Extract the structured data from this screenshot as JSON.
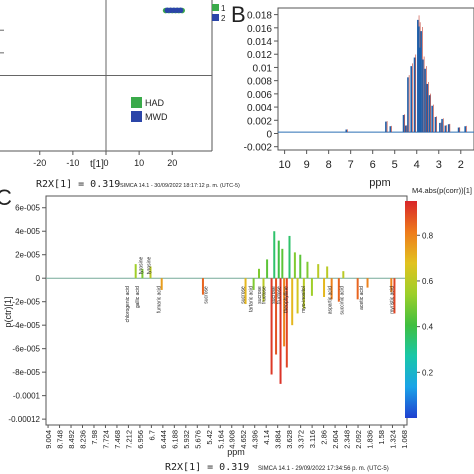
{
  "panels": {
    "b_letter": "B",
    "c_letter": "C"
  },
  "chart_data": [
    {
      "id": "A",
      "type": "scatter",
      "xlabel": "t[1]",
      "x_ticks": [
        -20,
        -10,
        0,
        10,
        20
      ],
      "xlim": [
        -32,
        32
      ],
      "ylim": [
        -1,
        1
      ],
      "series": [
        {
          "name": "HAD",
          "color": "#3aaa4a",
          "x": [
            18,
            19,
            20,
            21,
            22,
            23
          ],
          "y": [
            0.86,
            0.86,
            0.86,
            0.86,
            0.86,
            0.86
          ]
        },
        {
          "name": "MWD",
          "color": "#2b45a8",
          "x": [
            18.5,
            19.5,
            20.5,
            21.5,
            22.5
          ],
          "y": [
            0.87,
            0.87,
            0.87,
            0.87,
            0.87
          ]
        }
      ],
      "legend_top": [
        "1",
        "2"
      ],
      "legend_top_colors": [
        "#3aaa4a",
        "#2b45a8"
      ],
      "annotation": "R2X[1] = 0.319",
      "footer": "SIMCA 14.1 - 30/09/2022 18:17:12 p. m. (UTC-5)"
    },
    {
      "id": "B",
      "type": "line",
      "xlabel": "ppm",
      "x_ticks": [
        10,
        9,
        8,
        7,
        6,
        5,
        4,
        3,
        2
      ],
      "xlim": [
        10.3,
        1.4
      ],
      "ylim": [
        -0.0025,
        0.019
      ],
      "y_ticks": [
        0.018,
        0.016,
        0.014,
        0.012,
        0.01,
        0.008,
        0.006,
        0.004,
        0.002,
        0,
        -0.002
      ],
      "y_tick_labels": [
        "0.018",
        "0.016",
        "0.014",
        "0.012",
        "0.01",
        "0.008",
        "0.006",
        "0.004",
        "0.002",
        "0",
        "-0.002"
      ],
      "peaks": [
        {
          "x": 4.4,
          "y": 0.0085
        },
        {
          "x": 4.25,
          "y": 0.0102
        },
        {
          "x": 4.1,
          "y": 0.0115
        },
        {
          "x": 3.95,
          "y": 0.0172
        },
        {
          "x": 3.9,
          "y": 0.0162
        },
        {
          "x": 3.85,
          "y": 0.013
        },
        {
          "x": 3.8,
          "y": 0.0155
        },
        {
          "x": 3.72,
          "y": 0.0112
        },
        {
          "x": 3.62,
          "y": 0.0098
        },
        {
          "x": 3.52,
          "y": 0.0075
        },
        {
          "x": 3.42,
          "y": 0.0058
        },
        {
          "x": 3.3,
          "y": 0.0042
        },
        {
          "x": 3.15,
          "y": 0.0025
        },
        {
          "x": 2.95,
          "y": 0.0016
        },
        {
          "x": 2.85,
          "y": 0.0022
        },
        {
          "x": 2.7,
          "y": 0.0012
        },
        {
          "x": 2.55,
          "y": 0.0014
        },
        {
          "x": 2.1,
          "y": 0.0009
        },
        {
          "x": 1.8,
          "y": 0.0011
        },
        {
          "x": 5.4,
          "y": 0.0018
        },
        {
          "x": 5.2,
          "y": 0.0011
        },
        {
          "x": 4.6,
          "y": 0.0028
        },
        {
          "x": 4.5,
          "y": 0.0012
        },
        {
          "x": 7.2,
          "y": 0.0006
        }
      ]
    },
    {
      "id": "C",
      "type": "line",
      "ylabel": "p(ctr)[1]",
      "xlabel": "ppm",
      "x_ticks": [
        9.004,
        8.748,
        8.492,
        8.236,
        7.98,
        7.724,
        7.468,
        7.212,
        6.956,
        6.7,
        6.444,
        6.188,
        5.932,
        5.676,
        5.42,
        5.164,
        4.908,
        4.652,
        4.396,
        4.14,
        3.884,
        3.628,
        3.372,
        3.116,
        2.86,
        2.604,
        2.348,
        2.092,
        1.836,
        1.58,
        1.324,
        1.068
      ],
      "x_tick_labels": [
        "9.004",
        "8.748",
        "8.492",
        "8.236",
        "7.98",
        "7.724",
        "7.468",
        "7.212",
        "6.956",
        "6.7",
        "6.444",
        "6.188",
        "5.932",
        "5.676",
        "5.42",
        "5.164",
        "4.908",
        "4.652",
        "4.396",
        "4.14",
        "3.884",
        "3.628",
        "3.372",
        "3.116",
        "2.86",
        "2.604",
        "2.348",
        "2.092",
        "1.836",
        "1.58",
        "1.324",
        "1.068"
      ],
      "xlim": [
        9.05,
        1.0
      ],
      "y_ticks": [
        6e-05,
        4e-05,
        2e-05,
        0,
        -2e-05,
        -4e-05,
        -6e-05,
        -8e-05,
        -0.0001,
        -0.00012
      ],
      "y_tick_labels": [
        "6e-005",
        "4e-005",
        "2e-005",
        "0",
        "-2e-005",
        "-4e-005",
        "-6e-005",
        "-8e-005",
        "-0.0001",
        "-0.00012"
      ],
      "ylim": [
        -0.000125,
        7e-05
      ],
      "colorbar": {
        "title": "M4.abs(p(corr))[1]",
        "ticks": [
          0.8,
          0.6,
          0.4,
          0.2
        ],
        "range": [
          0.0,
          0.95
        ],
        "colors": [
          "#1f3fd0",
          "#1aa3e8",
          "#19c7a8",
          "#3fbf3f",
          "#9ccf2a",
          "#e2c21f",
          "#ee7b1c",
          "#d8262a"
        ]
      },
      "peaks": [
        {
          "x": 7.05,
          "y": 1.2e-05,
          "c": 0.55
        },
        {
          "x": 6.9,
          "y": 8e-06,
          "c": 0.5
        },
        {
          "x": 6.72,
          "y": 1e-05,
          "c": 0.6
        },
        {
          "x": 6.47,
          "y": -1e-05,
          "c": 0.75
        },
        {
          "x": 5.55,
          "y": -1.4e-05,
          "c": 0.85
        },
        {
          "x": 4.6,
          "y": -2.2e-05,
          "c": 0.7
        },
        {
          "x": 4.42,
          "y": -1e-05,
          "c": 0.5
        },
        {
          "x": 4.3,
          "y": 8e-06,
          "c": 0.5
        },
        {
          "x": 4.2,
          "y": -2e-05,
          "c": 0.6
        },
        {
          "x": 4.12,
          "y": 1.6e-05,
          "c": 0.45
        },
        {
          "x": 4.02,
          "y": -8.2e-05,
          "c": 0.92
        },
        {
          "x": 3.96,
          "y": 4e-05,
          "c": 0.35
        },
        {
          "x": 3.92,
          "y": -6.5e-05,
          "c": 0.88
        },
        {
          "x": 3.86,
          "y": 3.2e-05,
          "c": 0.4
        },
        {
          "x": 3.82,
          "y": -9e-05,
          "c": 0.93
        },
        {
          "x": 3.78,
          "y": 2.5e-05,
          "c": 0.45
        },
        {
          "x": 3.74,
          "y": -5.8e-05,
          "c": 0.8
        },
        {
          "x": 3.68,
          "y": -7.6e-05,
          "c": 0.9
        },
        {
          "x": 3.62,
          "y": 3.6e-05,
          "c": 0.35
        },
        {
          "x": 3.56,
          "y": -4e-05,
          "c": 0.7
        },
        {
          "x": 3.5,
          "y": 2.2e-05,
          "c": 0.5
        },
        {
          "x": 3.44,
          "y": -3e-05,
          "c": 0.65
        },
        {
          "x": 3.38,
          "y": 2e-05,
          "c": 0.45
        },
        {
          "x": 3.3,
          "y": -2.6e-05,
          "c": 0.6
        },
        {
          "x": 3.22,
          "y": 1.4e-05,
          "c": 0.5
        },
        {
          "x": 3.12,
          "y": -1.5e-05,
          "c": 0.55
        },
        {
          "x": 2.98,
          "y": 1.2e-05,
          "c": 0.6
        },
        {
          "x": 2.85,
          "y": -1.6e-05,
          "c": 0.7
        },
        {
          "x": 2.78,
          "y": 1e-05,
          "c": 0.6
        },
        {
          "x": 2.68,
          "y": -1.8e-05,
          "c": 0.8
        },
        {
          "x": 2.52,
          "y": -2e-05,
          "c": 0.85
        },
        {
          "x": 2.42,
          "y": 6e-06,
          "c": 0.6
        },
        {
          "x": 2.1,
          "y": -1.8e-05,
          "c": 0.85
        },
        {
          "x": 1.88,
          "y": -8e-06,
          "c": 0.8
        },
        {
          "x": 1.35,
          "y": -1.2e-05,
          "c": 0.8
        },
        {
          "x": 1.28,
          "y": -3e-05,
          "c": 0.9
        }
      ],
      "labels": [
        {
          "text": "chlorogenic acid",
          "x": 7.2,
          "dir": "down"
        },
        {
          "text": "tyrosine",
          "x": 6.9,
          "dir": "up"
        },
        {
          "text": "tyrosine",
          "x": 6.72,
          "dir": "up"
        },
        {
          "text": "gallic acid",
          "x": 6.98,
          "dir": "down"
        },
        {
          "text": "fumaric acid",
          "x": 6.5,
          "dir": "down"
        },
        {
          "text": "sucrose",
          "x": 5.45,
          "dir": "down"
        },
        {
          "text": "sucrose",
          "x": 4.62,
          "dir": "down"
        },
        {
          "text": "tartaric acid",
          "x": 4.45,
          "dir": "down"
        },
        {
          "text": "sucrose",
          "x": 4.26,
          "dir": "down"
        },
        {
          "text": "fructose",
          "x": 4.15,
          "dir": "down"
        },
        {
          "text": "sucrose",
          "x": 3.94,
          "dir": "down"
        },
        {
          "text": "fructose",
          "x": 3.82,
          "dir": "down"
        },
        {
          "text": "theophylline",
          "x": 3.66,
          "dir": "down"
        },
        {
          "text": "myo-inositol",
          "x": 3.28,
          "dir": "down"
        },
        {
          "text": "aspartic acid",
          "x": 2.68,
          "dir": "down"
        },
        {
          "text": "succinic acid",
          "x": 2.42,
          "dir": "down"
        },
        {
          "text": "acetic acid",
          "x": 1.98,
          "dir": "down"
        },
        {
          "text": "myristic acid",
          "x": 1.3,
          "dir": "down"
        }
      ],
      "annotation": "R2X[1] = 0.319",
      "footer": "SIMCA 14.1 - 29/09/2022 17:34:56 p. m. (UTC-5)"
    }
  ]
}
